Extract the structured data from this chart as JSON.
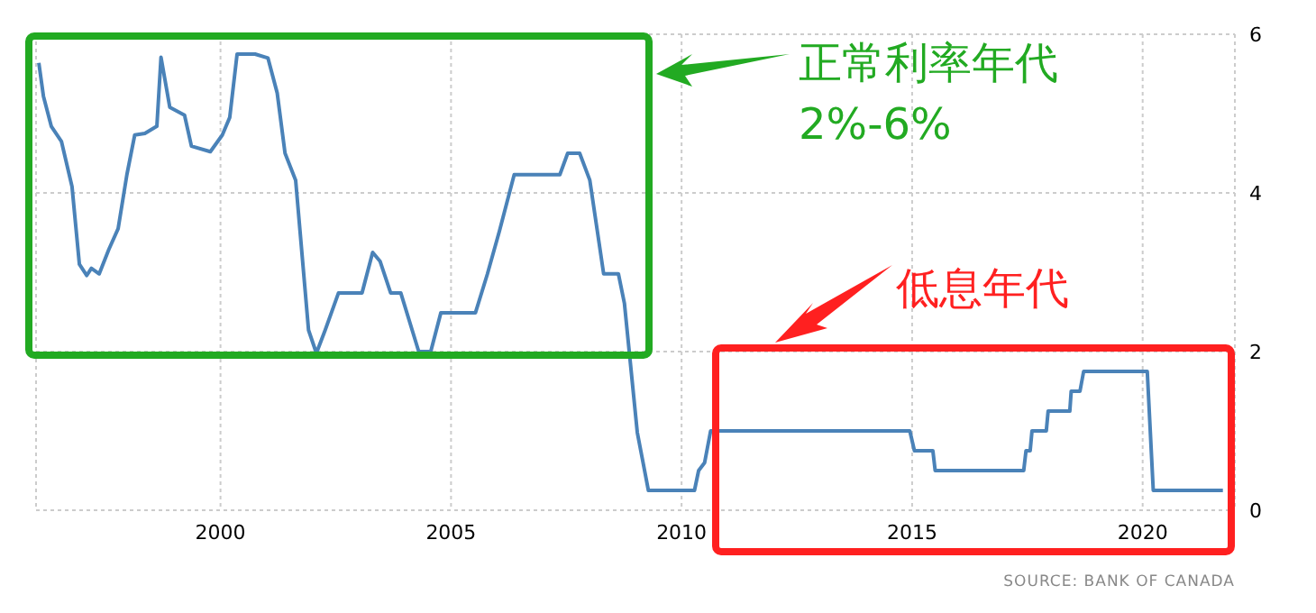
{
  "chart_data": {
    "type": "line",
    "x": [
      1996.06,
      1996.16,
      1996.33,
      1996.55,
      1996.78,
      1996.94,
      1997.1,
      1997.2,
      1997.37,
      1997.58,
      1997.78,
      1997.97,
      1998.14,
      1998.36,
      1998.62,
      1998.71,
      1998.9,
      1999.22,
      1999.37,
      1999.78,
      2000.04,
      2000.2,
      2000.36,
      2000.75,
      2001.03,
      2001.23,
      2001.4,
      2001.63,
      2001.91,
      2002.08,
      2002.27,
      2002.56,
      2003.07,
      2003.3,
      2003.46,
      2003.69,
      2003.91,
      2004.3,
      2004.56,
      2004.78,
      2005.53,
      2005.79,
      2006.05,
      2006.37,
      2007.36,
      2007.53,
      2007.79,
      2008.01,
      2008.31,
      2008.63,
      2008.76,
      2009.04,
      2009.28,
      2010.28,
      2010.37,
      2010.5,
      2010.63,
      2014.95,
      2015.05,
      2015.45,
      2015.5,
      2017.42,
      2017.47,
      2017.56,
      2017.6,
      2017.91,
      2017.95,
      2018.42,
      2018.45,
      2018.64,
      2018.72,
      2020.1,
      2020.23,
      2021.74
    ],
    "series": [
      {
        "color": "#4a82b8",
        "values": [
          5.64,
          5.22,
          4.84,
          4.65,
          4.08,
          3.1,
          2.96,
          3.05,
          2.98,
          3.29,
          3.55,
          4.23,
          4.73,
          4.75,
          4.84,
          5.71,
          5.08,
          4.98,
          4.59,
          4.52,
          4.73,
          4.95,
          5.75,
          5.75,
          5.7,
          5.26,
          4.5,
          4.16,
          2.27,
          1.98,
          2.27,
          2.74,
          2.74,
          3.25,
          3.14,
          2.74,
          2.74,
          2.0,
          2.0,
          2.49,
          2.49,
          2.98,
          3.52,
          4.23,
          4.23,
          4.5,
          4.5,
          4.16,
          2.98,
          2.98,
          2.61,
          0.98,
          0.25,
          0.25,
          0.5,
          0.6,
          1.0,
          1.0,
          0.75,
          0.75,
          0.5,
          0.5,
          0.75,
          0.75,
          1.0,
          1.0,
          1.25,
          1.25,
          1.5,
          1.5,
          1.75,
          1.75,
          0.25,
          0.25
        ]
      }
    ],
    "xlim": [
      1996,
      2022
    ],
    "xticks": [
      2000,
      2005,
      2010,
      2015,
      2020
    ],
    "ylim": [
      0,
      6
    ],
    "yticks": [
      0,
      2,
      4,
      6
    ],
    "grid": true,
    "marker": "none",
    "line_style": "solid",
    "annotations": [
      "正常利率年代\n2%-6%",
      "低息年代",
      "SOURCE: BANK OF CANADA"
    ]
  }
}
